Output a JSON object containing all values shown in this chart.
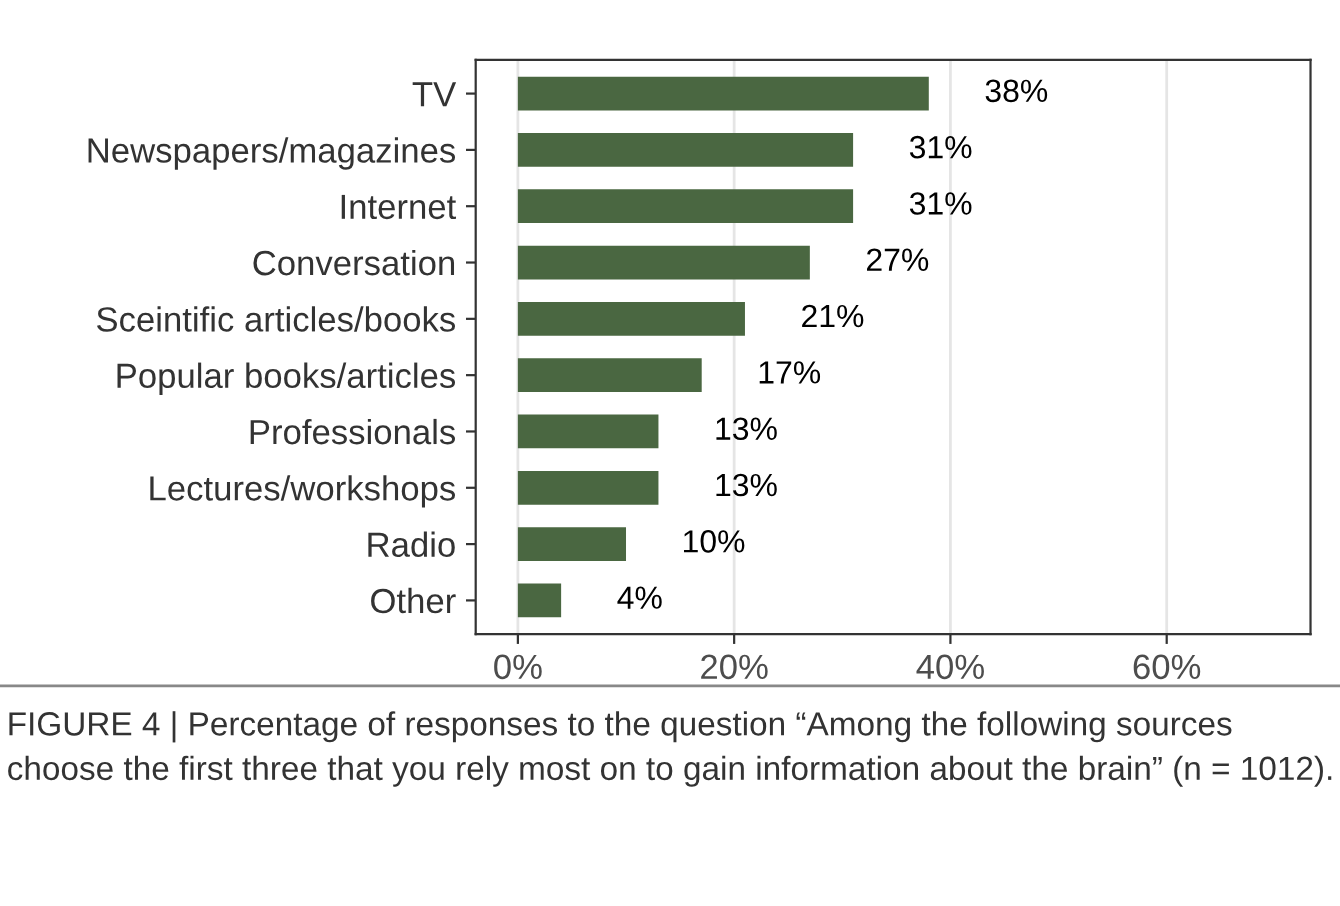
{
  "chart_data": {
    "type": "bar",
    "orientation": "horizontal",
    "categories": [
      "TV",
      "Newspapers/magazines",
      "Internet",
      "Conversation",
      "Sceintific articles/books",
      "Popular books/articles",
      "Professionals",
      "Lectures/workshops",
      "Radio",
      "Other"
    ],
    "values": [
      38,
      31,
      31,
      27,
      21,
      17,
      13,
      13,
      10,
      4
    ],
    "value_labels": [
      "38%",
      "31%",
      "31%",
      "27%",
      "21%",
      "17%",
      "13%",
      "13%",
      "10%",
      "4%"
    ],
    "color": "#4a6741",
    "xlim": [
      -3.9,
      73.3
    ],
    "xticks": [
      {
        "value": 0,
        "label": "0%"
      },
      {
        "value": 20,
        "label": "20%"
      },
      {
        "value": 40,
        "label": "40%"
      },
      {
        "value": 60,
        "label": "60%"
      }
    ],
    "grid": "x",
    "annotations": [
      "FIGURE 4 | Percentage of responses to the question “Among the following sources choose the first three that you rely most on to gain information about the brain” (n = 1012)."
    ]
  }
}
